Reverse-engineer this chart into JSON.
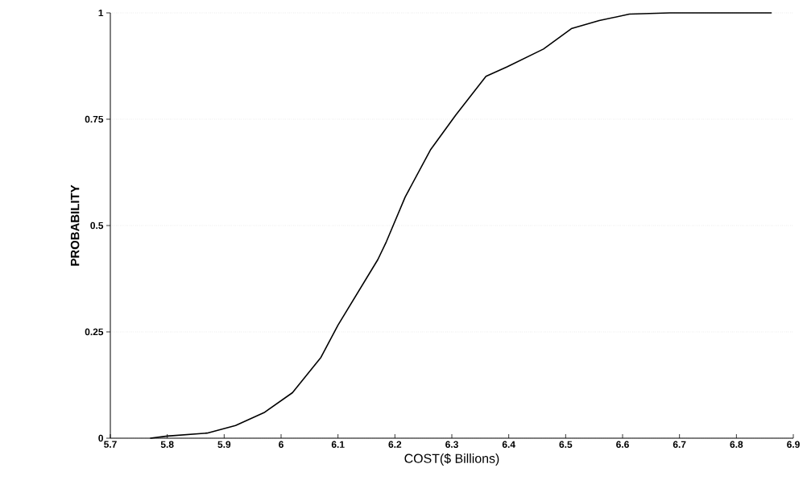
{
  "chart_data": {
    "type": "line",
    "xlabel": "COST($ Billions)",
    "ylabel": "PROBABILITY",
    "x": [
      5.77,
      5.8,
      5.87,
      5.92,
      5.97,
      6.02,
      6.07,
      6.1,
      6.17,
      6.185,
      6.218,
      6.263,
      6.307,
      6.36,
      6.397,
      6.461,
      6.51,
      6.559,
      6.612,
      6.683,
      6.862
    ],
    "series": [
      {
        "color": "#000000",
        "values": [
          0,
          0.005,
          0.012,
          0.03,
          0.06,
          0.107,
          0.19,
          0.266,
          0.42,
          0.462,
          0.567,
          0.679,
          0.76,
          0.851,
          0.873,
          0.915,
          0.963,
          0.982,
          0.997,
          1.0,
          1.0
        ]
      }
    ],
    "xlim": [
      5.7,
      6.9
    ],
    "ylim": [
      0,
      1
    ],
    "xticks": [
      5.7,
      5.8,
      5.9,
      6,
      6.1,
      6.2,
      6.3,
      6.4,
      6.5,
      6.6,
      6.7,
      6.8,
      6.9
    ],
    "yticks": [
      0,
      0.25,
      0.5,
      0.75,
      1
    ],
    "grid": "y",
    "line_style": "solid",
    "marker": "none"
  }
}
